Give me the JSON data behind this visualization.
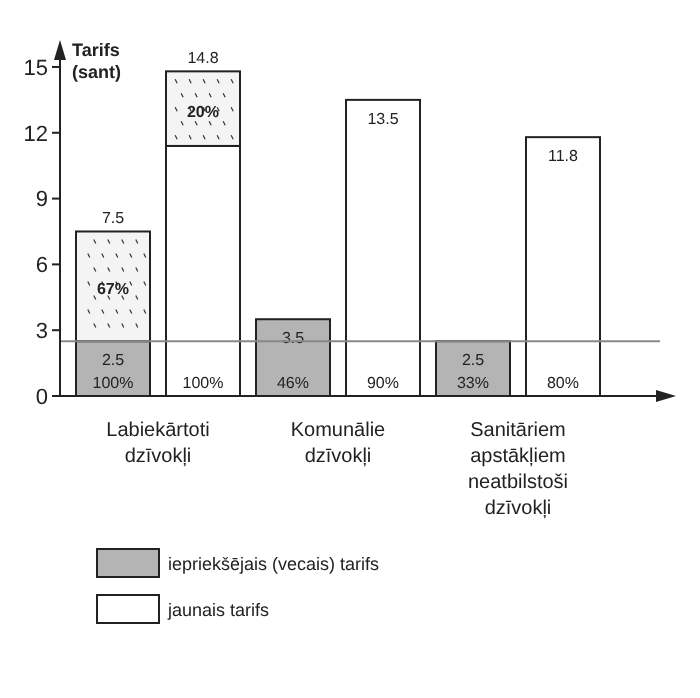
{
  "chart_data": {
    "type": "bar",
    "stacked": true,
    "ylabel": "Tarifs (sant)",
    "categories": [
      "Labiekārtoti dzīvokļi",
      null,
      "Komunālie dzīvokļi",
      null,
      "Sanitāriem apstākļiem neatbilstoši dzīvokļi",
      null
    ],
    "series": [
      {
        "name": "iepriekšējais (vecais) tarifs",
        "color": "#b4b4b4",
        "values": [
          2.5,
          null,
          3.5,
          null,
          2.5,
          null
        ],
        "value_labels": [
          "2.5",
          null,
          "3.5",
          null,
          "2.5",
          null
        ]
      },
      {
        "name": "jaunais tarifs",
        "color": "#ffffff",
        "values": [
          null,
          11.4,
          null,
          13.5,
          null,
          11.8
        ],
        "value_labels": [
          null,
          null,
          null,
          "13.5",
          null,
          "11.8"
        ]
      },
      {
        "color": "#f4f4f4",
        "values": [
          5.0,
          3.4,
          null,
          null,
          null,
          null
        ]
      }
    ],
    "totals": [
      "7.5",
      "14.8",
      null,
      null,
      null,
      null
    ],
    "ylim": [
      0,
      15.5
    ],
    "yticks": [
      0,
      3,
      6,
      9,
      12,
      15
    ],
    "legend": "bottom",
    "ref_lines": [
      {
        "axis": "y",
        "value": 2.5,
        "color": "#888888"
      }
    ],
    "annotations": [
      "100%",
      "67%",
      "100%",
      "20%",
      "46%",
      "90%",
      "33%",
      "80%"
    ]
  }
}
